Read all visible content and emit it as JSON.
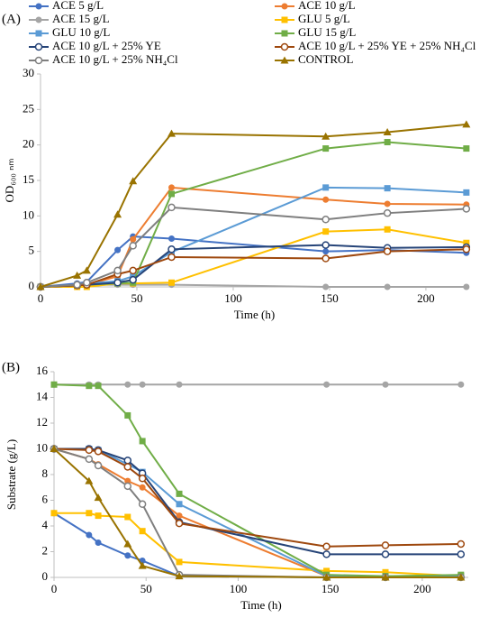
{
  "chart_data": [
    {
      "type": "line",
      "title": "(A)",
      "xlabel": "Time (h)",
      "ylabel": "OD₆₀₀ ₙₘ",
      "x": [
        0,
        19,
        24,
        40,
        48,
        68,
        148,
        180,
        221
      ],
      "xlim": [
        0,
        222
      ],
      "xticks": [
        0,
        50,
        100,
        150,
        200
      ],
      "ylim": [
        0,
        30
      ],
      "yticks": [
        0,
        5,
        10,
        15,
        20,
        25,
        30
      ],
      "series": [
        {
          "name": "ACE 5 g/L",
          "color": "#4472c4",
          "marker": "circle",
          "values": [
            0,
            0.5,
            0.7,
            5.2,
            7.1,
            6.8,
            5.0,
            5.2,
            4.8
          ]
        },
        {
          "name": "ACE 10 g/L",
          "color": "#ed7d31",
          "marker": "circle",
          "values": [
            0,
            0.2,
            0.3,
            1.5,
            6.7,
            14.0,
            12.3,
            11.7,
            11.6
          ]
        },
        {
          "name": "ACE 15 g/L",
          "color": "#a5a5a5",
          "marker": "circle",
          "values": [
            0,
            0.2,
            0.3,
            0.3,
            0.3,
            0.3,
            0,
            0,
            0
          ]
        },
        {
          "name": "GLU 5 g/L",
          "color": "#ffc000",
          "marker": "square",
          "values": [
            0,
            0,
            0,
            0.5,
            0.5,
            0.6,
            7.8,
            8.1,
            6.2
          ]
        },
        {
          "name": "GLU 10 g/L",
          "color": "#5b9bd5",
          "marker": "square",
          "values": [
            0,
            0.3,
            0.5,
            0.8,
            1.5,
            4.9,
            14.0,
            13.9,
            13.3
          ]
        },
        {
          "name": "GLU 15 g/L",
          "color": "#70ad47",
          "marker": "square",
          "values": [
            0,
            0.2,
            0.3,
            0.5,
            0.6,
            13.1,
            19.5,
            20.4,
            19.5
          ]
        },
        {
          "name": "ACE 10 g/L + 25% YE",
          "color": "#264478",
          "marker": "open-circle",
          "values": [
            0,
            0.2,
            0.3,
            0.6,
            1.0,
            5.3,
            5.9,
            5.5,
            5.6
          ]
        },
        {
          "name": "ACE 10 g/L + 25% YE + 25% NH₄Cl",
          "color": "#9e480e",
          "marker": "open-circle",
          "values": [
            0,
            0.2,
            0.3,
            1.8,
            2.3,
            4.2,
            4.0,
            5.0,
            5.3
          ]
        },
        {
          "name": "ACE 10 g/L + 25% NH₄Cl",
          "color": "#7f7f7f",
          "marker": "open-circle",
          "values": [
            0,
            0.3,
            0.6,
            2.3,
            5.8,
            11.2,
            9.5,
            10.4,
            11.0
          ]
        },
        {
          "name": "CONTROL",
          "color": "#997300",
          "marker": "triangle",
          "values": [
            0,
            1.6,
            2.3,
            10.2,
            14.9,
            21.6,
            21.2,
            21.8,
            22.9
          ]
        }
      ]
    },
    {
      "type": "line",
      "title": "(B)",
      "xlabel": "Time (h)",
      "ylabel": "Substrate (g/L)",
      "x": [
        0,
        19,
        24,
        40,
        48,
        68,
        148,
        180,
        221
      ],
      "xlim": [
        0,
        225
      ],
      "xticks": [
        0,
        50,
        100,
        150,
        200
      ],
      "ylim": [
        0,
        16
      ],
      "yticks": [
        0,
        2,
        4,
        6,
        8,
        10,
        12,
        14,
        16
      ],
      "series": [
        {
          "color": "#4472c4",
          "marker": "circle",
          "values": [
            5,
            3.3,
            2.7,
            1.7,
            1.3,
            0.1,
            0,
            0,
            0
          ]
        },
        {
          "color": "#ed7d31",
          "marker": "circle",
          "values": [
            10,
            9.2,
            8.8,
            7.5,
            7.0,
            4.8,
            0.1,
            0.1,
            0.1
          ]
        },
        {
          "color": "#a5a5a5",
          "marker": "circle",
          "values": [
            15,
            15,
            15,
            15,
            15,
            15,
            15,
            15,
            15
          ]
        },
        {
          "color": "#ffc000",
          "marker": "square",
          "values": [
            5,
            5,
            4.8,
            4.7,
            3.6,
            1.2,
            0.5,
            0.4,
            0.1
          ]
        },
        {
          "color": "#5b9bd5",
          "marker": "square",
          "values": [
            10,
            10,
            9.9,
            8.8,
            8.2,
            5.7,
            0.1,
            0.1,
            0.1
          ]
        },
        {
          "color": "#70ad47",
          "marker": "square",
          "values": [
            15,
            14.9,
            14.9,
            12.6,
            10.6,
            6.5,
            0.2,
            0.1,
            0.2
          ]
        },
        {
          "color": "#264478",
          "marker": "open-circle",
          "values": [
            10,
            10,
            9.9,
            9.1,
            8.1,
            4.3,
            1.8,
            1.8,
            1.8
          ]
        },
        {
          "color": "#9e480e",
          "marker": "open-circle",
          "values": [
            10,
            9.9,
            9.8,
            8.6,
            7.7,
            4.2,
            2.4,
            2.5,
            2.6
          ]
        },
        {
          "color": "#7f7f7f",
          "marker": "open-circle",
          "values": [
            10,
            9.2,
            8.7,
            7.1,
            5.7,
            0.2,
            0,
            0,
            0
          ]
        },
        {
          "color": "#997300",
          "marker": "triangle",
          "values": [
            10,
            7.5,
            6.2,
            2.6,
            0.9,
            0.1,
            0,
            0,
            0
          ]
        }
      ]
    }
  ]
}
